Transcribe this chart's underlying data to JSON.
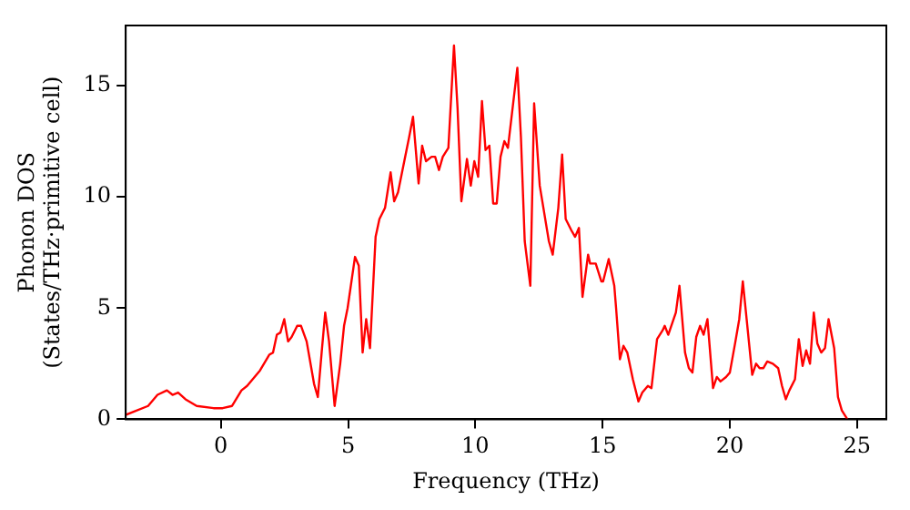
{
  "chart_data": {
    "type": "line",
    "xlabel": "Frequency (THz)",
    "ylabel": "Phonon DOS\n(States/THz·primitive cell)",
    "xlim": [
      -3.74,
      26.15
    ],
    "ylim": [
      0,
      17.7
    ],
    "xticks": [
      0,
      5,
      10,
      15,
      20,
      25
    ],
    "yticks": [
      0,
      5,
      10,
      15
    ],
    "grid": false,
    "legend": false,
    "marker": "none",
    "line_style": "solid",
    "series": [
      {
        "color": "#ff0000",
        "x": [
          -3.74,
          -2.86,
          -2.49,
          -2.12,
          -1.9,
          -1.68,
          -1.39,
          -0.95,
          -0.29,
          0.07,
          0.44,
          0.81,
          1.03,
          1.54,
          1.9,
          2.05,
          2.2,
          2.34,
          2.49,
          2.64,
          2.78,
          3.0,
          3.15,
          3.37,
          3.66,
          3.81,
          3.96,
          4.1,
          4.25,
          4.47,
          4.69,
          4.84,
          4.98,
          5.27,
          5.42,
          5.57,
          5.71,
          5.86,
          6.08,
          6.23,
          6.45,
          6.67,
          6.81,
          6.96,
          7.4,
          7.55,
          7.77,
          7.91,
          8.06,
          8.28,
          8.42,
          8.57,
          8.72,
          8.94,
          9.16,
          9.3,
          9.45,
          9.67,
          9.82,
          9.96,
          10.11,
          10.26,
          10.4,
          10.55,
          10.7,
          10.84,
          10.99,
          11.14,
          11.28,
          11.65,
          11.79,
          11.94,
          12.16,
          12.31,
          12.53,
          12.89,
          13.04,
          13.26,
          13.41,
          13.55,
          13.77,
          13.92,
          14.07,
          14.21,
          14.43,
          14.51,
          14.73,
          14.95,
          15.02,
          15.24,
          15.46,
          15.53,
          15.68,
          15.82,
          15.97,
          16.19,
          16.41,
          16.56,
          16.78,
          16.92,
          17.14,
          17.36,
          17.44,
          17.58,
          17.88,
          18.02,
          18.24,
          18.39,
          18.53,
          18.68,
          18.83,
          18.97,
          19.12,
          19.34,
          19.49,
          19.63,
          19.85,
          20.0,
          20.22,
          20.37,
          20.51,
          20.66,
          20.88,
          21.03,
          21.17,
          21.32,
          21.47,
          21.69,
          21.9,
          22.05,
          22.2,
          22.34,
          22.56,
          22.71,
          22.86,
          23.0,
          23.15,
          23.3,
          23.44,
          23.59,
          23.74,
          23.88,
          24.1,
          24.25,
          24.4,
          24.62
        ],
        "values": [
          0.2,
          0.6,
          1.1,
          1.3,
          1.1,
          1.2,
          0.9,
          0.6,
          0.5,
          0.5,
          0.6,
          1.3,
          1.5,
          2.2,
          2.9,
          3.0,
          3.8,
          3.9,
          4.5,
          3.5,
          3.7,
          4.2,
          4.2,
          3.5,
          1.6,
          1.0,
          3.0,
          4.8,
          3.5,
          0.6,
          2.5,
          4.2,
          5.0,
          7.3,
          6.9,
          3.0,
          4.5,
          3.2,
          8.2,
          9.0,
          9.5,
          11.1,
          9.8,
          10.2,
          12.7,
          13.6,
          10.6,
          12.3,
          11.6,
          11.8,
          11.8,
          11.2,
          11.8,
          12.2,
          16.8,
          14.0,
          9.8,
          11.7,
          10.5,
          11.6,
          10.9,
          14.3,
          12.1,
          12.3,
          9.7,
          9.7,
          11.8,
          12.5,
          12.2,
          15.8,
          12.7,
          8.0,
          6.0,
          14.2,
          10.5,
          8.0,
          7.4,
          9.5,
          11.9,
          9.0,
          8.5,
          8.2,
          8.6,
          5.5,
          7.4,
          7.0,
          7.0,
          6.2,
          6.2,
          7.2,
          6.0,
          5.0,
          2.7,
          3.3,
          3.0,
          1.8,
          0.8,
          1.2,
          1.5,
          1.4,
          3.6,
          4.0,
          4.2,
          3.8,
          4.8,
          6.0,
          3.0,
          2.3,
          2.1,
          3.7,
          4.2,
          3.8,
          4.5,
          1.4,
          1.9,
          1.7,
          1.9,
          2.1,
          3.5,
          4.5,
          6.2,
          4.5,
          2.0,
          2.5,
          2.3,
          2.3,
          2.6,
          2.5,
          2.3,
          1.5,
          0.9,
          1.3,
          1.8,
          3.6,
          2.4,
          3.1,
          2.5,
          4.8,
          3.4,
          3.0,
          3.2,
          4.5,
          3.2,
          1.0,
          0.4,
          0
        ]
      }
    ]
  }
}
